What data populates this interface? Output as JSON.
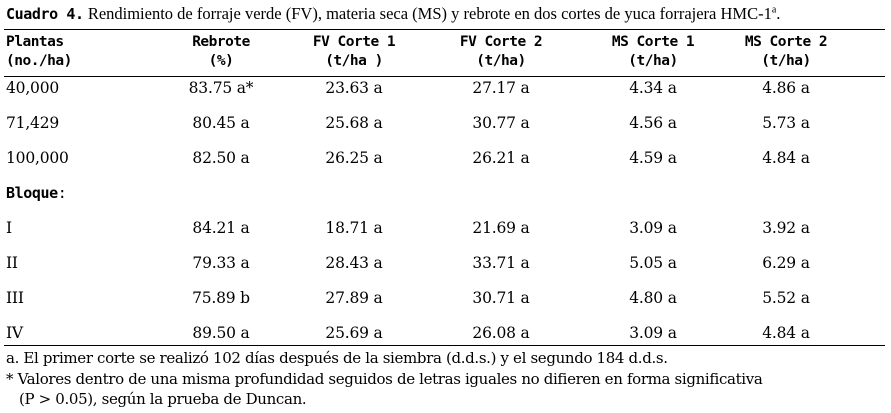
{
  "caption": {
    "label": "Cuadro 4.",
    "text": " Rendimiento de forraje verde (FV), materia seca (MS) y rebrote en dos cortes de yuca forrajera HMC-1",
    "superscript": "a",
    "end": "."
  },
  "headers": {
    "plantas": [
      "Plantas",
      "(no./ha)"
    ],
    "rebrote": [
      "Rebrote",
      "(%)"
    ],
    "fv1": [
      "FV Corte 1",
      "(t/ha )"
    ],
    "fv2": [
      "FV Corte 2",
      "(t/ha)"
    ],
    "ms1": [
      "MS Corte 1",
      "(t/ha)"
    ],
    "ms2": [
      "MS Corte 2",
      "(t/ha)"
    ]
  },
  "rows_plantas": [
    [
      "40,000",
      "83.75 a*",
      "23.63 a",
      "27.17 a",
      "4.34 a",
      "4.86 a"
    ],
    [
      "71,429",
      "80.45 a",
      "25.68 a",
      "30.77 a",
      "4.56 a",
      "5.73 a"
    ],
    [
      "100,000",
      "82.50 a",
      "26.25 a",
      "26.21 a",
      "4.59 a",
      "4.84 a"
    ]
  ],
  "section_label": "Bloque",
  "section_colon": ":",
  "rows_bloque": [
    [
      "I",
      "84.21 a",
      "18.71 a",
      "21.69 a",
      "3.09 a",
      "3.92 a"
    ],
    [
      "II",
      "79.33 a",
      "28.43 a",
      "33.71 a",
      "5.05 a",
      "6.29 a"
    ],
    [
      "III",
      "75.89 b",
      "27.89 a",
      "30.71 a",
      "4.80 a",
      "5.52 a"
    ],
    [
      "IV",
      "89.50 a",
      "25.69 a",
      "26.08 a",
      "3.09 a",
      "4.84 a"
    ]
  ],
  "notes": [
    "a. El primer corte se realizó 102 días después de la siembra (d.d.s.) y el segundo 184 d.d.s.",
    "* Valores dentro de una misma profundidad seguidos de letras iguales no difieren en forma significativa",
    "(P > 0.05), según la prueba de Duncan."
  ]
}
